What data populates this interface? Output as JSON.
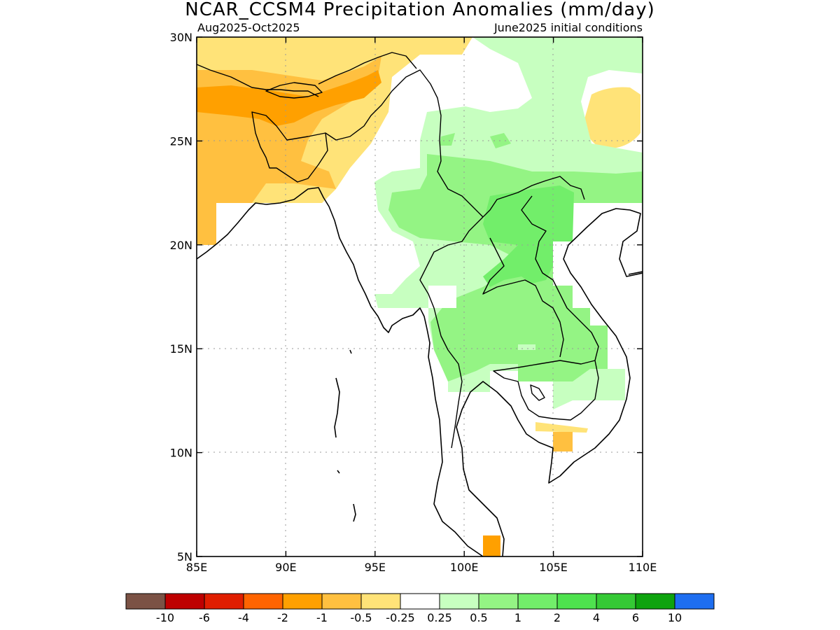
{
  "title": "NCAR_CCSM4 Precipitation Anomalies (mm/day)",
  "subtitle_left": "Aug2025-Oct2025",
  "subtitle_right": "June2025 initial conditions",
  "axes": {
    "x_ticks": [
      "85E",
      "90E",
      "95E",
      "100E",
      "105E",
      "110E"
    ],
    "y_ticks": [
      "30N",
      "25N",
      "20N",
      "15N",
      "10N",
      "5N"
    ],
    "lon_range": [
      85,
      110
    ],
    "lat_range": [
      5,
      30
    ],
    "grid": true
  },
  "colorbar": {
    "colors": [
      "#7b5245",
      "#be0000",
      "#e01e00",
      "#ff6400",
      "#ffa000",
      "#ffc040",
      "#ffe378",
      "#ffffff",
      "#c7ffc0",
      "#94f484",
      "#72ee6a",
      "#4ee24e",
      "#35c935",
      "#0ea30e",
      "#1e6ef0"
    ],
    "labels": [
      "-10",
      "-6",
      "-4",
      "-2",
      "-1",
      "-0.5",
      "-0.25",
      "0.25",
      "0.5",
      "1",
      "2",
      "4",
      "6",
      "10"
    ]
  },
  "anomaly_regions": [
    {
      "category": "-0.25",
      "color": "#ffe378",
      "desc": "north Bangladesh, Myanmar north, Tibet edge"
    },
    {
      "category": "-0.5",
      "color": "#ffc040",
      "desc": "NE India / Bangladesh"
    },
    {
      "category": "-1",
      "color": "#ffa000",
      "desc": "Assam band"
    },
    {
      "category": "-0.25",
      "color": "#ffe378",
      "desc": "south China high"
    },
    {
      "category": "0.25",
      "color": "#c7ffc0",
      "desc": "south China, Myanmar east, Thailand, Laos"
    },
    {
      "category": "0.5",
      "color": "#94f484",
      "desc": "Thailand, Laos, Cambodia"
    },
    {
      "category": "1",
      "color": "#72ee6a",
      "desc": "north Vietnam / Laos"
    }
  ]
}
